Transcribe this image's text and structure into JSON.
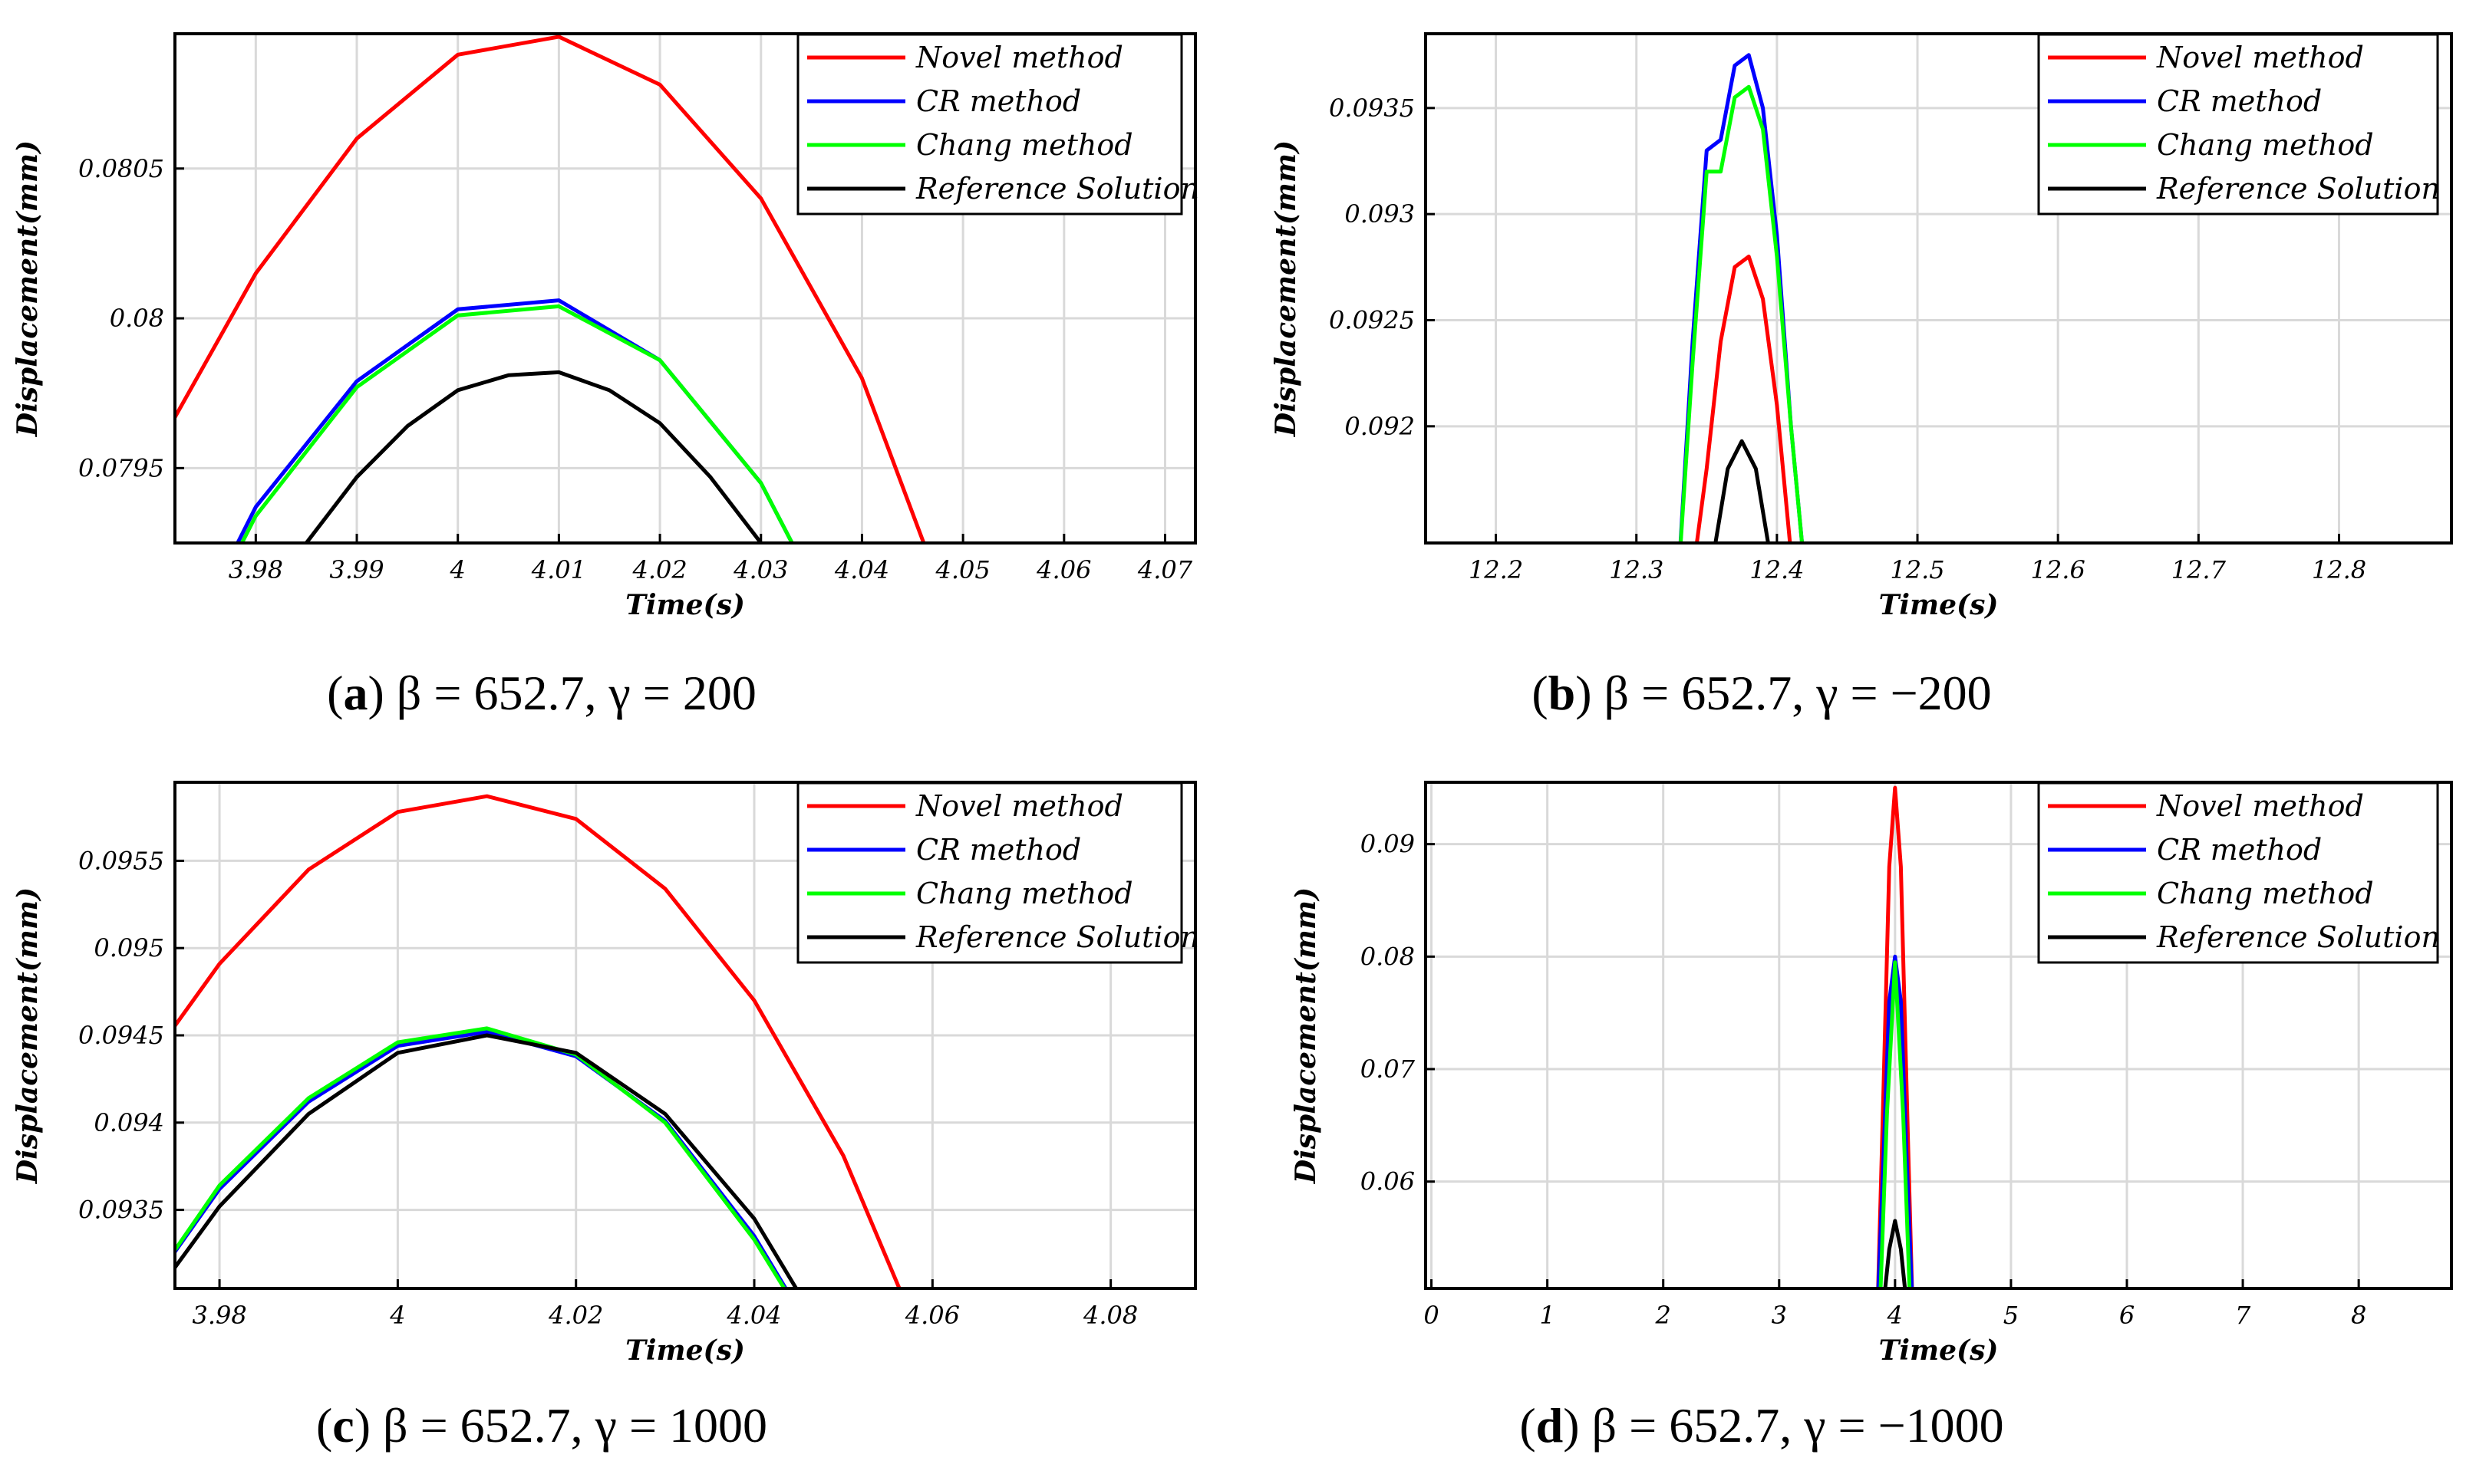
{
  "figure": {
    "legend_entries": [
      {
        "label": "Novel method",
        "color": "#ff0000"
      },
      {
        "label": "CR method",
        "color": "#0000ff"
      },
      {
        "label": "Chang method",
        "color": "#00ff00"
      },
      {
        "label": "Reference Solution",
        "color": "#000000"
      }
    ]
  },
  "chart_data": [
    {
      "id": "a",
      "type": "line",
      "caption_letter": "a",
      "caption_text": " β = 652.7, γ = 200",
      "xlabel": "Time(s)",
      "ylabel": "Displacement(mm)",
      "xlim": [
        3.972,
        4.073
      ],
      "ylim": [
        0.07925,
        0.08095
      ],
      "xticks": [
        3.98,
        3.99,
        4,
        4.01,
        4.02,
        4.03,
        4.04,
        4.05,
        4.06,
        4.07
      ],
      "xtick_labels": [
        "3.98",
        "3.99",
        "4",
        "4.01",
        "4.02",
        "4.03",
        "4.04",
        "4.05",
        "4.06",
        "4.07"
      ],
      "yticks": [
        0.0795,
        0.08,
        0.0805
      ],
      "ytick_labels": [
        "0.0795",
        "0.08",
        "0.0805"
      ],
      "grid": true,
      "legend_position": "top-right",
      "series": [
        {
          "name": "Novel method",
          "color": "#ff0000",
          "x": [
            3.97,
            3.98,
            3.99,
            4.0,
            4.01,
            4.02,
            4.03,
            4.04,
            4.05
          ],
          "y": [
            0.07955,
            0.08015,
            0.0806,
            0.08088,
            0.08094,
            0.08078,
            0.0804,
            0.0798,
            0.0789
          ]
        },
        {
          "name": "CR method",
          "color": "#0000ff",
          "x": [
            3.97,
            3.98,
            3.99,
            4.0,
            4.01,
            4.02,
            4.03,
            4.04
          ],
          "y": [
            0.0787,
            0.07937,
            0.07979,
            0.08003,
            0.08006,
            0.07986,
            0.07945,
            0.0788
          ]
        },
        {
          "name": "Chang method",
          "color": "#00ff00",
          "x": [
            3.97,
            3.98,
            3.99,
            4.0,
            4.01,
            4.02,
            4.03,
            4.04
          ],
          "y": [
            0.07868,
            0.07934,
            0.07977,
            0.08001,
            0.08004,
            0.07986,
            0.07945,
            0.0788
          ]
        },
        {
          "name": "Reference Solution",
          "color": "#000000",
          "x": [
            3.98,
            3.985,
            3.99,
            3.995,
            4.0,
            4.005,
            4.01,
            4.015,
            4.02,
            4.025,
            4.03,
            4.035
          ],
          "y": [
            0.07897,
            0.07925,
            0.07947,
            0.07964,
            0.07976,
            0.07981,
            0.07982,
            0.07976,
            0.07965,
            0.07947,
            0.07925,
            0.07897
          ]
        }
      ]
    },
    {
      "id": "b",
      "type": "line",
      "caption_letter": "b",
      "caption_text": " β = 652.7, γ = −200",
      "xlabel": "Time(s)",
      "ylabel": "Displacement(mm)",
      "xlim": [
        12.15,
        12.88
      ],
      "ylim": [
        0.09145,
        0.09385
      ],
      "xticks": [
        12.2,
        12.3,
        12.4,
        12.5,
        12.6,
        12.7,
        12.8
      ],
      "xtick_labels": [
        "12.2",
        "12.3",
        "12.4",
        "12.5",
        "12.6",
        "12.7",
        "12.8"
      ],
      "yticks": [
        0.092,
        0.0925,
        0.093,
        0.0935
      ],
      "ytick_labels": [
        "0.092",
        "0.0925",
        "0.093",
        "0.0935"
      ],
      "grid": true,
      "legend_position": "top-right",
      "series": [
        {
          "name": "Novel method",
          "color": "#ff0000",
          "x": [
            12.34,
            12.35,
            12.36,
            12.37,
            12.38,
            12.39,
            12.4,
            12.41
          ],
          "y": [
            0.0913,
            0.0918,
            0.0924,
            0.09275,
            0.0928,
            0.0926,
            0.0921,
            0.0914
          ]
        },
        {
          "name": "CR method",
          "color": "#0000ff",
          "x": [
            12.33,
            12.34,
            12.35,
            12.36,
            12.37,
            12.38,
            12.39,
            12.4,
            12.41,
            12.42
          ],
          "y": [
            0.0913,
            0.0924,
            0.0933,
            0.09335,
            0.0937,
            0.09375,
            0.0935,
            0.0929,
            0.092,
            0.0913
          ]
        },
        {
          "name": "Chang method",
          "color": "#00ff00",
          "x": [
            12.33,
            12.34,
            12.35,
            12.36,
            12.37,
            12.38,
            12.39,
            12.4,
            12.41,
            12.42
          ],
          "y": [
            0.0913,
            0.0923,
            0.0932,
            0.0932,
            0.09355,
            0.0936,
            0.0934,
            0.0928,
            0.092,
            0.0913
          ]
        },
        {
          "name": "Reference Solution",
          "color": "#000000",
          "x": [
            12.355,
            12.365,
            12.375,
            12.385,
            12.395
          ],
          "y": [
            0.0914,
            0.0918,
            0.09193,
            0.0918,
            0.0914
          ]
        }
      ]
    },
    {
      "id": "c",
      "type": "line",
      "caption_letter": "c",
      "caption_text": " β = 652.7, γ = 1000",
      "xlabel": "Time(s)",
      "ylabel": "Displacement(mm)",
      "xlim": [
        3.975,
        4.0895
      ],
      "ylim": [
        0.09305,
        0.09595
      ],
      "xticks": [
        3.98,
        4,
        4.02,
        4.04,
        4.06,
        4.08
      ],
      "xtick_labels": [
        "3.98",
        "4",
        "4.02",
        "4.04",
        "4.06",
        "4.08"
      ],
      "yticks": [
        0.0935,
        0.094,
        0.0945,
        0.095,
        0.0955
      ],
      "ytick_labels": [
        "0.0935",
        "0.094",
        "0.0945",
        "0.095",
        "0.0955"
      ],
      "grid": true,
      "legend_position": "top-right",
      "series": [
        {
          "name": "Novel method",
          "color": "#ff0000",
          "x": [
            3.97,
            3.98,
            3.99,
            4.0,
            4.01,
            4.02,
            4.03,
            4.04,
            4.05,
            4.06
          ],
          "y": [
            0.0942,
            0.09491,
            0.09545,
            0.09578,
            0.09587,
            0.09574,
            0.09534,
            0.0947,
            0.09381,
            0.0926
          ]
        },
        {
          "name": "CR method",
          "color": "#0000ff",
          "x": [
            3.97,
            3.98,
            3.99,
            4.0,
            4.01,
            4.02,
            4.03,
            4.04,
            4.05
          ],
          "y": [
            0.0929,
            0.09362,
            0.09412,
            0.09444,
            0.09452,
            0.09438,
            0.09401,
            0.09335,
            0.0925
          ]
        },
        {
          "name": "Chang method",
          "color": "#00ff00",
          "x": [
            3.97,
            3.98,
            3.99,
            4.0,
            4.01,
            4.02,
            4.03,
            4.04,
            4.05
          ],
          "y": [
            0.0929,
            0.09364,
            0.09414,
            0.09446,
            0.09454,
            0.09439,
            0.094,
            0.09333,
            0.0925
          ]
        },
        {
          "name": "Reference Solution",
          "color": "#000000",
          "x": [
            3.97,
            3.98,
            3.99,
            4.0,
            4.01,
            4.02,
            4.03,
            4.04,
            4.05
          ],
          "y": [
            0.09282,
            0.09352,
            0.09405,
            0.0944,
            0.0945,
            0.0944,
            0.09405,
            0.09345,
            0.0926
          ]
        }
      ]
    },
    {
      "id": "d",
      "type": "line",
      "caption_letter": "d",
      "caption_text": " β = 652.7, γ = −1000",
      "xlabel": "Time(s)",
      "ylabel": "Displacement(mm)",
      "xlim": [
        -0.05,
        8.8
      ],
      "ylim": [
        0.0505,
        0.0955
      ],
      "xticks": [
        0,
        1,
        2,
        3,
        4,
        5,
        6,
        7,
        8
      ],
      "xtick_labels": [
        "0",
        "1",
        "2",
        "3",
        "4",
        "5",
        "6",
        "7",
        "8"
      ],
      "yticks": [
        0.06,
        0.07,
        0.08,
        0.09
      ],
      "ytick_labels": [
        "0.06",
        "0.07",
        "0.08",
        "0.09"
      ],
      "grid": true,
      "legend_position": "top-right",
      "series": [
        {
          "name": "Novel method",
          "color": "#ff0000",
          "x": [
            3.85,
            3.9,
            3.95,
            4.0,
            4.05,
            4.1,
            4.15
          ],
          "y": [
            0.049,
            0.068,
            0.088,
            0.095,
            0.088,
            0.068,
            0.049
          ]
        },
        {
          "name": "CR method",
          "color": "#0000ff",
          "x": [
            3.85,
            3.9,
            3.95,
            4.0,
            4.05,
            4.1,
            4.15
          ],
          "y": [
            0.049,
            0.062,
            0.076,
            0.08,
            0.076,
            0.062,
            0.049
          ]
        },
        {
          "name": "Chang method",
          "color": "#00ff00",
          "x": [
            3.87,
            3.93,
            4.0,
            4.07,
            4.13
          ],
          "y": [
            0.049,
            0.066,
            0.0795,
            0.066,
            0.049
          ]
        },
        {
          "name": "Reference Solution",
          "color": "#000000",
          "x": [
            3.9,
            3.95,
            4.0,
            4.05,
            4.1
          ],
          "y": [
            0.049,
            0.054,
            0.0565,
            0.054,
            0.049
          ]
        }
      ]
    }
  ]
}
